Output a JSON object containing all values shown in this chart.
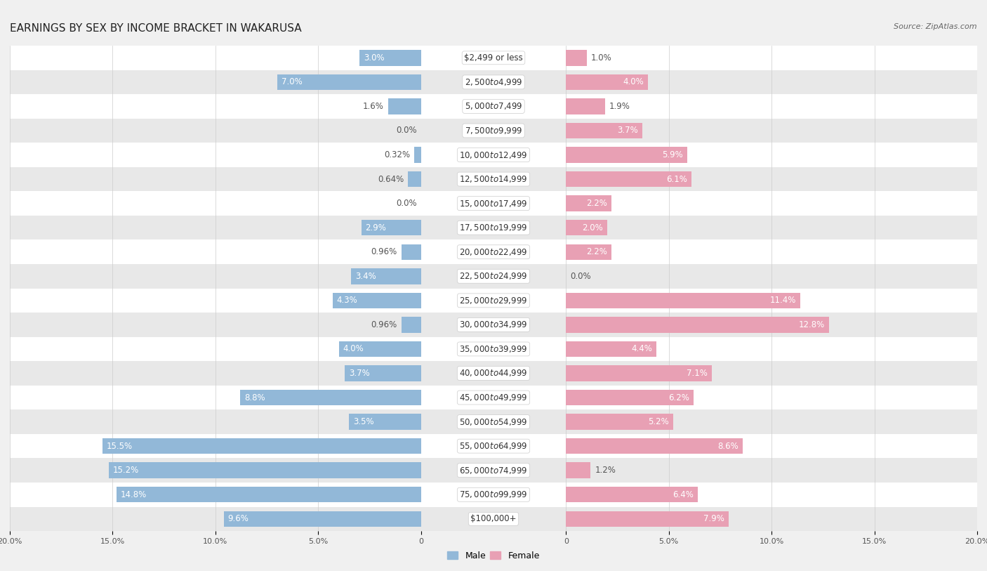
{
  "title": "EARNINGS BY SEX BY INCOME BRACKET IN WAKARUSA",
  "source": "Source: ZipAtlas.com",
  "categories": [
    "$2,499 or less",
    "$2,500 to $4,999",
    "$5,000 to $7,499",
    "$7,500 to $9,999",
    "$10,000 to $12,499",
    "$12,500 to $14,999",
    "$15,000 to $17,499",
    "$17,500 to $19,999",
    "$20,000 to $22,499",
    "$22,500 to $24,999",
    "$25,000 to $29,999",
    "$30,000 to $34,999",
    "$35,000 to $39,999",
    "$40,000 to $44,999",
    "$45,000 to $49,999",
    "$50,000 to $54,999",
    "$55,000 to $64,999",
    "$65,000 to $74,999",
    "$75,000 to $99,999",
    "$100,000+"
  ],
  "male_values": [
    3.0,
    7.0,
    1.6,
    0.0,
    0.32,
    0.64,
    0.0,
    2.9,
    0.96,
    3.4,
    4.3,
    0.96,
    4.0,
    3.7,
    8.8,
    3.5,
    15.5,
    15.2,
    14.8,
    9.6
  ],
  "female_values": [
    1.0,
    4.0,
    1.9,
    3.7,
    5.9,
    6.1,
    2.2,
    2.0,
    2.2,
    0.0,
    11.4,
    12.8,
    4.4,
    7.1,
    6.2,
    5.2,
    8.6,
    1.2,
    6.4,
    7.9
  ],
  "male_color": "#92b8d8",
  "female_color": "#e8a0b4",
  "axis_limit": 20.0,
  "background_color": "#f0f0f0",
  "row_color_even": "#ffffff",
  "row_color_odd": "#e8e8e8",
  "title_fontsize": 11,
  "label_fontsize": 8.5,
  "category_fontsize": 8.5,
  "legend_fontsize": 9,
  "axis_label_fontsize": 8,
  "tick_vals": [
    -20,
    -15,
    -10,
    -5,
    0,
    5,
    10,
    15,
    20
  ],
  "tick_labels": [
    "20.0%",
    "15.0%",
    "10.0%",
    "5.0%",
    "0",
    "5.0%",
    "10.0%",
    "15.0%",
    "20.0%"
  ],
  "inside_threshold": 2.0
}
